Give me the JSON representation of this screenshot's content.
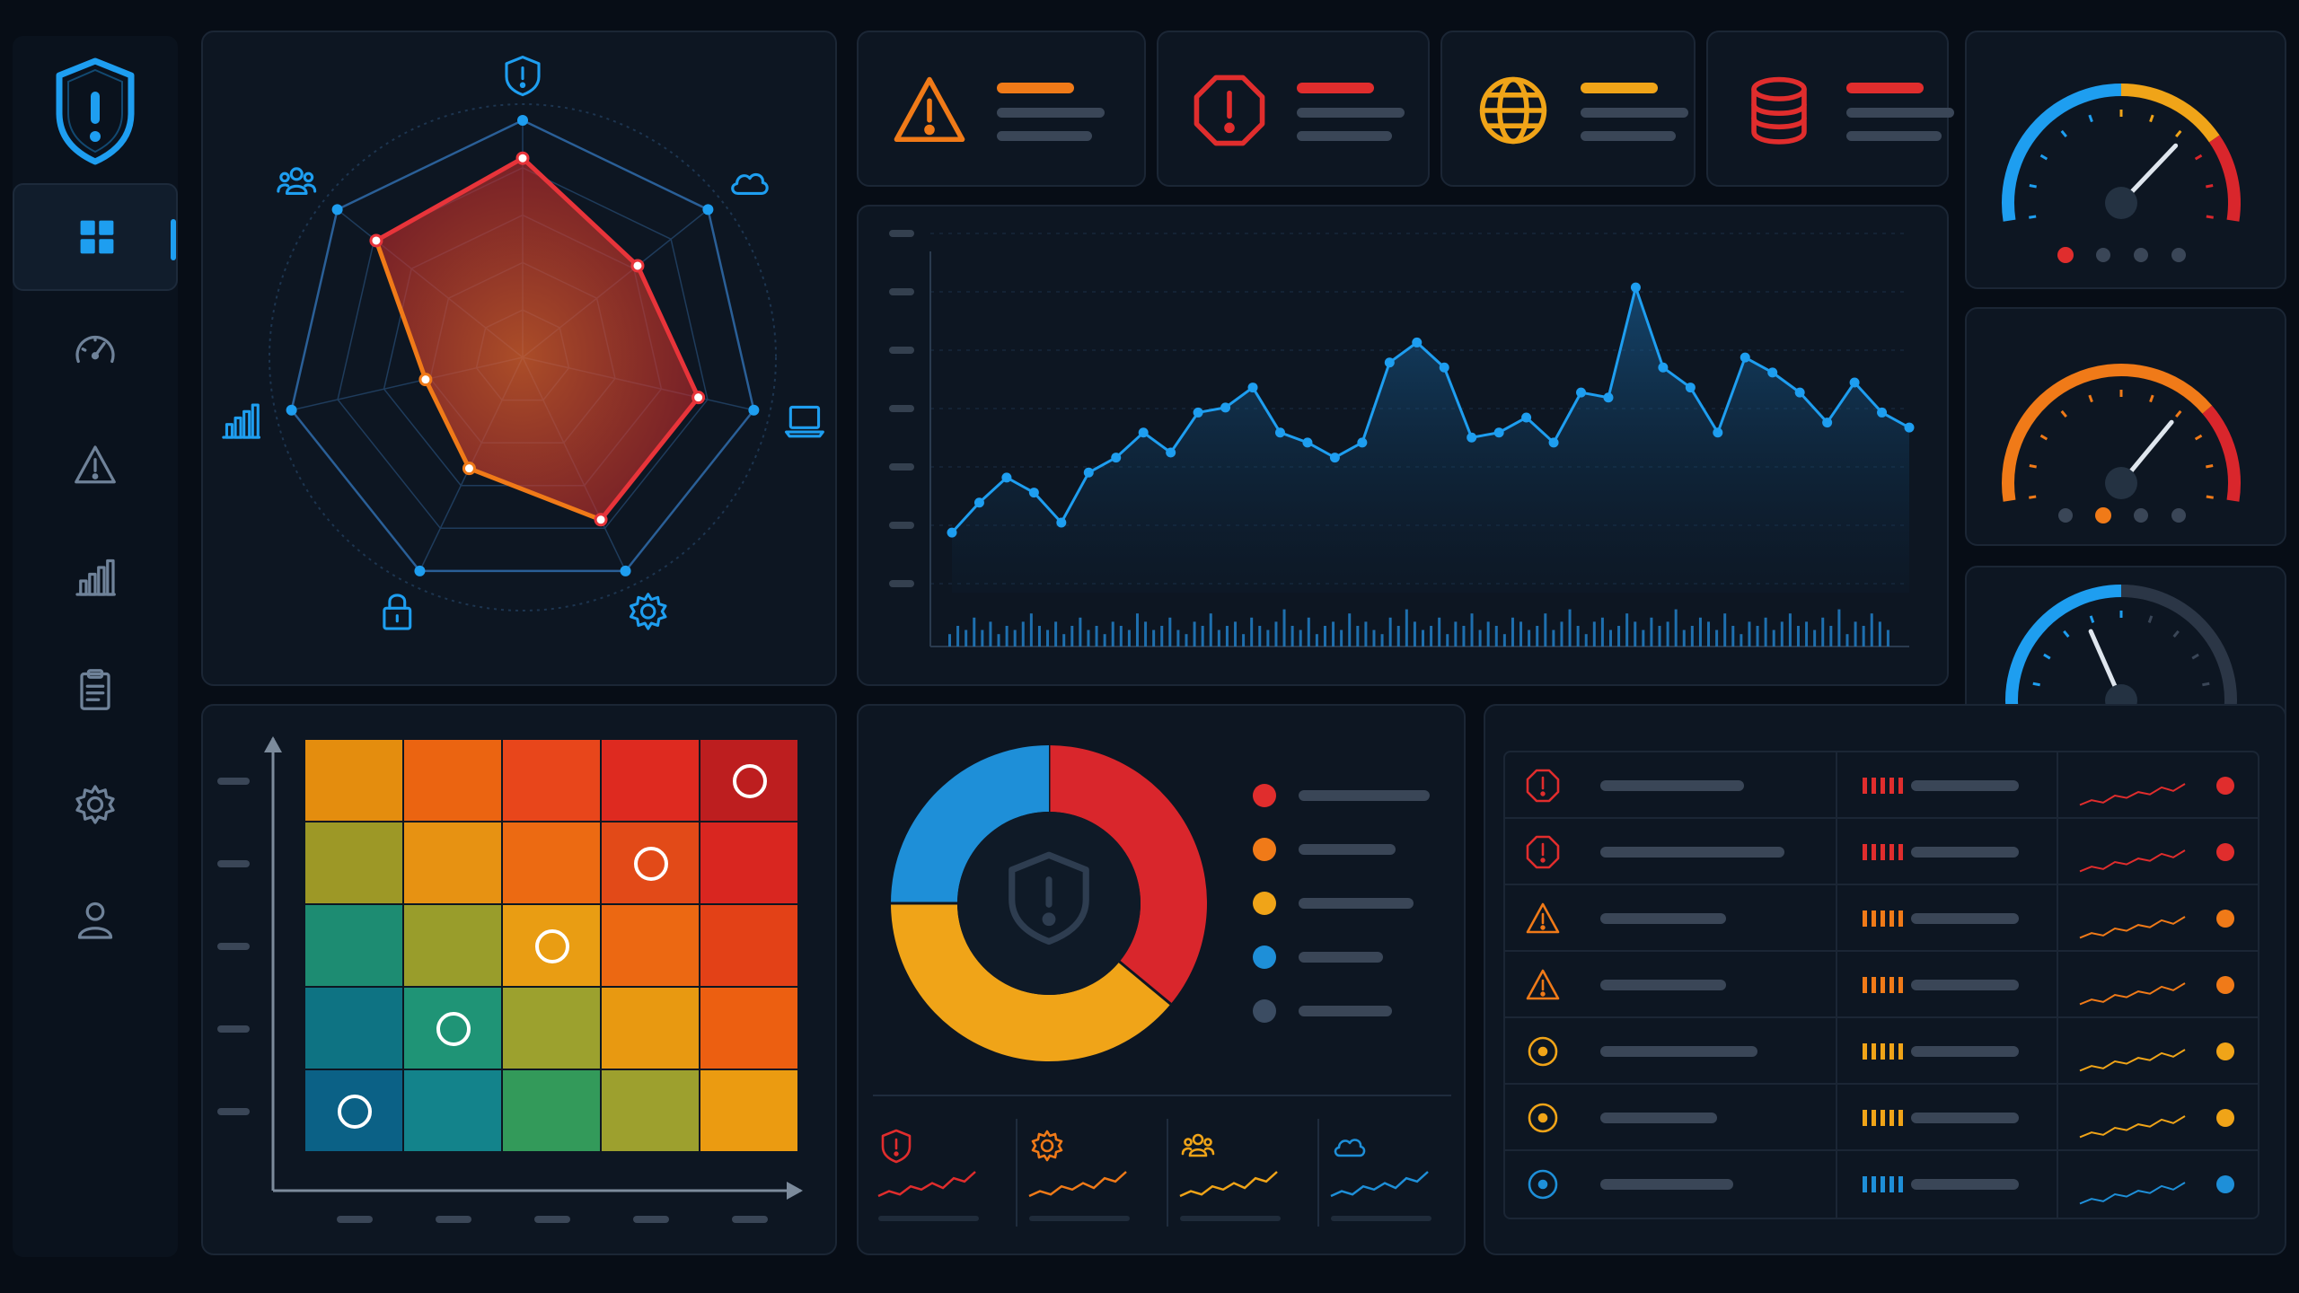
{
  "colors": {
    "background": "#070d16",
    "panel": "#0d1622",
    "panel_border": "#1b2635",
    "accent_blue": "#1e9ef0",
    "critical_red": "#e02d2d",
    "high_orange": "#f07a18",
    "medium_amber": "#f0a418",
    "low_blue": "#1e8fd8",
    "info_gray": "#3b4c62",
    "placeholder_gray": "#3a4657"
  },
  "sidebar": {
    "logo_icon": "shield-alert-icon",
    "items": [
      {
        "icon": "dashboard-grid-icon",
        "active": true
      },
      {
        "icon": "speedometer-icon",
        "active": false
      },
      {
        "icon": "warning-triangle-icon",
        "active": false
      },
      {
        "icon": "bar-chart-icon",
        "active": false
      },
      {
        "icon": "clipboard-icon",
        "active": false
      },
      {
        "icon": "gear-icon",
        "active": false
      },
      {
        "icon": "user-icon",
        "active": false
      }
    ]
  },
  "radar": {
    "axes_icons": [
      "shield-icon",
      "cloud-icon",
      "laptop-icon",
      "gear-icon",
      "lock-icon",
      "bar-chart-icon",
      "users-icon"
    ],
    "values": [
      0.84,
      0.62,
      0.76,
      0.76,
      0.52,
      0.42,
      0.79
    ]
  },
  "stat_cards": [
    {
      "icon": "warning-triangle-icon",
      "color": "#f07a18",
      "accent": "#f07a18"
    },
    {
      "icon": "octagon-alert-icon",
      "color": "#e02d2d",
      "accent": "#e02d2d"
    },
    {
      "icon": "globe-icon",
      "color": "#f0a418",
      "accent": "#f0a418"
    },
    {
      "icon": "database-icon",
      "color": "#e02d2d",
      "accent": "#e02d2d"
    }
  ],
  "gauges": [
    {
      "value": 0.72,
      "color": "#1e9ef0",
      "active_dot": 0,
      "dot_color": "#e02d2d"
    },
    {
      "value": 0.7,
      "color": "#f07a18",
      "active_dot": 1,
      "dot_color": "#f07a18"
    },
    {
      "value": 0.38,
      "color": "#1e9ef0",
      "active_dot": 0,
      "dot_color": "#1e9ef0"
    }
  ],
  "chart_data": {
    "type": "line",
    "title": "",
    "xlabel": "",
    "ylabel": "",
    "grid": true,
    "y_range": [
      0,
      7
    ],
    "series": [
      {
        "values": [
          1.2,
          1.8,
          2.3,
          2.0,
          1.4,
          2.4,
          2.7,
          3.2,
          2.8,
          3.6,
          3.7,
          4.1,
          3.2,
          3.0,
          2.7,
          3.0,
          4.6,
          5.0,
          4.5,
          3.1,
          3.2,
          3.5,
          3.0,
          4.0,
          3.9,
          6.1,
          4.5,
          4.1,
          3.2,
          4.7,
          4.4,
          4.0,
          3.4,
          4.2,
          3.6,
          3.3
        ],
        "color": "#1e9ef0"
      }
    ],
    "bars": {
      "values": [
        0.3,
        0.5,
        0.4,
        0.7,
        0.4,
        0.6,
        0.3,
        0.5,
        0.4,
        0.6,
        0.8,
        0.5,
        0.4,
        0.6,
        0.3,
        0.5,
        0.7,
        0.4,
        0.5,
        0.3,
        0.6,
        0.5,
        0.4,
        0.8,
        0.6,
        0.4,
        0.5,
        0.7,
        0.4,
        0.3,
        0.6,
        0.5,
        0.8,
        0.4,
        0.5,
        0.6,
        0.3,
        0.7,
        0.5,
        0.4,
        0.6,
        0.9,
        0.5,
        0.4,
        0.7,
        0.3,
        0.5,
        0.6,
        0.4,
        0.8,
        0.5,
        0.6,
        0.4,
        0.3,
        0.7,
        0.5,
        0.9,
        0.6,
        0.4,
        0.5,
        0.7,
        0.3,
        0.6,
        0.5,
        0.8,
        0.4,
        0.6,
        0.5,
        0.3,
        0.7,
        0.6,
        0.4,
        0.5,
        0.8,
        0.4,
        0.6,
        0.9,
        0.5,
        0.3,
        0.6,
        0.7,
        0.4,
        0.5,
        0.8,
        0.6,
        0.4,
        0.7,
        0.5,
        0.6,
        0.9,
        0.4,
        0.5,
        0.7,
        0.6,
        0.4,
        0.8,
        0.5,
        0.3,
        0.6,
        0.5,
        0.7,
        0.4,
        0.6,
        0.8,
        0.5,
        0.6,
        0.4,
        0.7,
        0.5,
        0.9,
        0.3,
        0.6,
        0.5,
        0.8,
        0.6,
        0.4
      ],
      "color": "#1e6fae"
    }
  },
  "heatmap": {
    "rows": [
      [
        "#e48d0e",
        "#eb6411",
        "#e8461b",
        "#de2a20",
        "#bd1e1f"
      ],
      [
        "#9d9826",
        "#e79212",
        "#ec6a12",
        "#e24a18",
        "#d92620"
      ],
      [
        "#1d8c72",
        "#999d2b",
        "#e99d13",
        "#ec6812",
        "#e34117"
      ],
      [
        "#0e7383",
        "#1f9476",
        "#9ca12e",
        "#e89911",
        "#ec5f11"
      ],
      [
        "#0b6186",
        "#13838b",
        "#339a5a",
        "#9da02e",
        "#eb9b11"
      ]
    ],
    "markers": [
      [
        0,
        4
      ],
      [
        1,
        3
      ],
      [
        2,
        2
      ],
      [
        3,
        1
      ],
      [
        4,
        0
      ]
    ]
  },
  "donut": {
    "center_icon": "shield-alert-icon",
    "segments": [
      {
        "value": 0.36,
        "color": "#d9262c"
      },
      {
        "value": 0.39,
        "color": "#f0a418"
      },
      {
        "value": 0.25,
        "color": "#1e8fd8"
      }
    ],
    "legend": [
      {
        "color": "#e02d2d"
      },
      {
        "color": "#f07a18"
      },
      {
        "color": "#f0a418"
      },
      {
        "color": "#1e8fd8"
      },
      {
        "color": "#3b4c62"
      }
    ],
    "mini_cards": [
      {
        "icon": "shield-alert-icon",
        "color": "#e02d2d"
      },
      {
        "icon": "gear-icon",
        "color": "#f07a18"
      },
      {
        "icon": "users-icon",
        "color": "#f0a418"
      },
      {
        "icon": "cloud-icon",
        "color": "#1e8fd8"
      }
    ]
  },
  "alert_table": {
    "rows": [
      {
        "icon": "octagon-alert-icon",
        "color": "#e02d2d",
        "name_len": 160,
        "bar_len": 120
      },
      {
        "icon": "octagon-alert-icon",
        "color": "#e02d2d",
        "name_len": 205,
        "bar_len": 120
      },
      {
        "icon": "warning-triangle-icon",
        "color": "#f07a18",
        "name_len": 140,
        "bar_len": 120
      },
      {
        "icon": "warning-triangle-icon",
        "color": "#f07a18",
        "name_len": 140,
        "bar_len": 120
      },
      {
        "icon": "target-icon",
        "color": "#f0a418",
        "name_len": 175,
        "bar_len": 120
      },
      {
        "icon": "target-icon",
        "color": "#f0a418",
        "name_len": 130,
        "bar_len": 120
      },
      {
        "icon": "target-icon",
        "color": "#1e8fd8",
        "name_len": 148,
        "bar_len": 120
      }
    ]
  }
}
